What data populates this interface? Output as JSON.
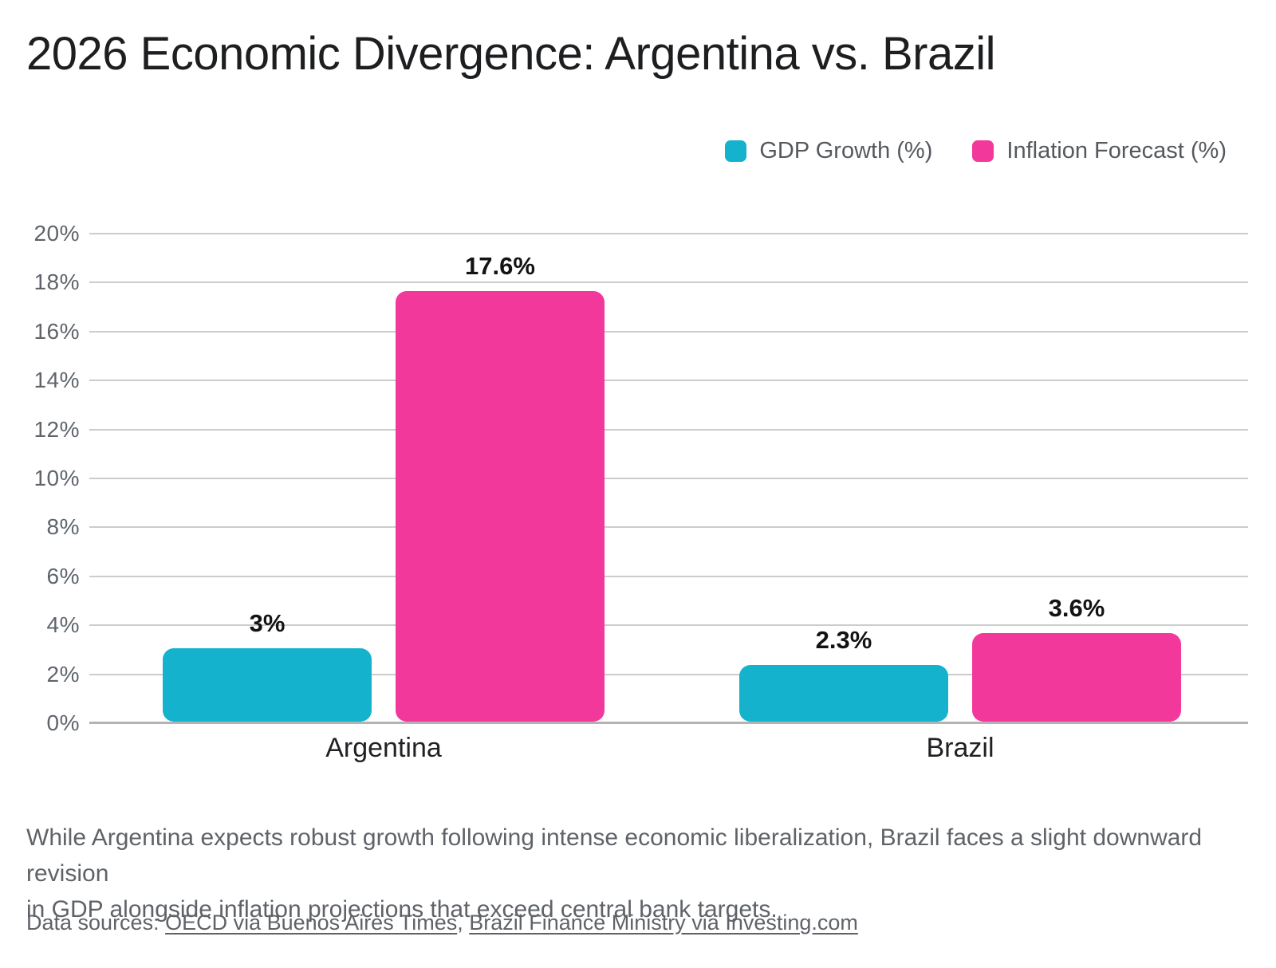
{
  "title": "2026 Economic Divergence: Argentina vs. Brazil",
  "chart_data": {
    "type": "bar",
    "title": "2026 Economic Divergence: Argentina vs. Brazil",
    "categories": [
      "Argentina",
      "Brazil"
    ],
    "series": [
      {
        "name": "GDP Growth (%)",
        "color": "#15b2cd",
        "values": [
          3,
          2.3
        ],
        "value_labels": [
          "3%",
          "2.3%"
        ]
      },
      {
        "name": "Inflation Forecast (%)",
        "color": "#f3389c",
        "values": [
          17.6,
          3.6
        ],
        "value_labels": [
          "17.6%",
          "3.6%"
        ]
      }
    ],
    "xlabel": "",
    "ylabel": "",
    "ylim": [
      0,
      20
    ],
    "yticks": [
      0,
      2,
      4,
      6,
      8,
      10,
      12,
      14,
      16,
      18,
      20
    ],
    "ytick_labels": [
      "0%",
      "2%",
      "4%",
      "6%",
      "8%",
      "10%",
      "12%",
      "14%",
      "16%",
      "18%",
      "20%"
    ],
    "grid": true,
    "legend_position": "top-right"
  },
  "description": {
    "line1": "While Argentina expects robust growth following intense economic liberalization, Brazil faces a slight downward revision",
    "line2": "in GDP alongside inflation projections that exceed central bank targets."
  },
  "sources": {
    "prefix": "Data sources: ",
    "link1": "OECD via Buenos Aires Times",
    "separator": ", ",
    "link2": "Brazil Finance Ministry via Investing.com"
  }
}
